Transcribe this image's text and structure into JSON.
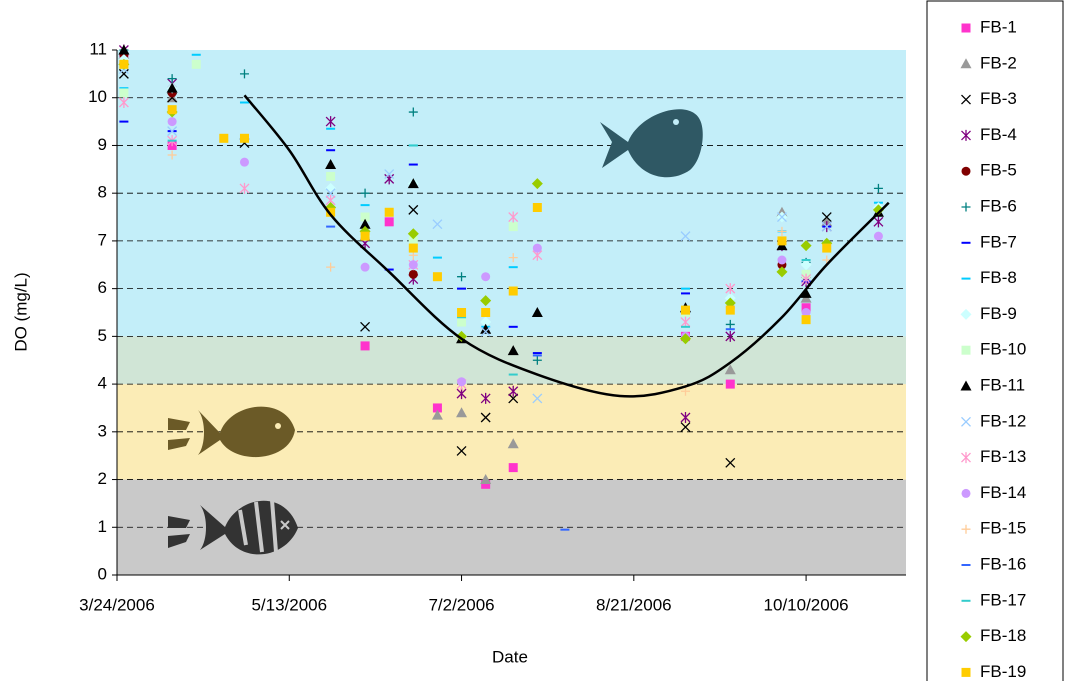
{
  "chart_data": {
    "type": "scatter",
    "x_label": "Date",
    "y_label": "DO (mg/L)",
    "xlim": [
      "3/24/2006",
      "11/8/2006"
    ],
    "xticks": [
      "3/24/2006",
      "5/13/2006",
      "7/2/2006",
      "8/21/2006",
      "10/10/2006"
    ],
    "ylim": [
      0,
      11
    ],
    "yticks": [
      0,
      1,
      2,
      3,
      4,
      5,
      6,
      7,
      8,
      9,
      10,
      11
    ],
    "grid": true,
    "legend": "right",
    "bands": [
      {
        "from": 0,
        "to": 2,
        "color": "#c9c9c9"
      },
      {
        "from": 2,
        "to": 4,
        "color": "#fbecb6"
      },
      {
        "from": 4,
        "to": 5,
        "color": "#d0e5d6"
      },
      {
        "from": 5,
        "to": 11,
        "color": "#c3eef9"
      }
    ],
    "x": [
      "3/26/2006",
      "4/9/2006",
      "4/16/2006",
      "4/24/2006",
      "4/30/2006",
      "5/25/2006",
      "6/4/2006",
      "6/11/2006",
      "6/18/2006",
      "6/25/2006",
      "7/2/2006",
      "7/9/2006",
      "7/17/2006",
      "7/24/2006",
      "8/1/2006",
      "9/5/2006",
      "9/18/2006",
      "10/3/2006",
      "10/10/2006",
      "10/16/2006",
      "10/31/2006"
    ],
    "series": [
      {
        "name": "FB-1",
        "color": "#ff33cc",
        "marker": "square",
        "values": [
          10.8,
          9.0,
          null,
          null,
          null,
          null,
          4.8,
          7.4,
          null,
          3.5,
          null,
          1.9,
          2.25,
          null,
          null,
          5.0,
          4.0,
          null,
          5.6,
          null,
          null
        ]
      },
      {
        "name": "FB-2",
        "color": "#999999",
        "marker": "triangle",
        "values": [
          10.9,
          10.0,
          null,
          null,
          null,
          null,
          null,
          null,
          null,
          3.35,
          3.4,
          2.0,
          2.75,
          null,
          null,
          5.6,
          4.3,
          7.6,
          5.8,
          7.4,
          null
        ]
      },
      {
        "name": "FB-3",
        "color": "#000000",
        "marker": "x",
        "values": [
          10.5,
          10.0,
          null,
          null,
          9.05,
          null,
          5.2,
          null,
          7.65,
          null,
          2.6,
          3.3,
          3.7,
          null,
          null,
          3.1,
          2.35,
          6.9,
          null,
          7.5,
          null
        ]
      },
      {
        "name": "FB-4",
        "color": "#800080",
        "marker": "star",
        "values": [
          11.0,
          10.3,
          null,
          null,
          null,
          9.5,
          6.95,
          8.3,
          6.2,
          null,
          3.8,
          3.7,
          3.85,
          null,
          null,
          3.3,
          5.0,
          6.9,
          6.15,
          7.3,
          7.4
        ]
      },
      {
        "name": "FB-5",
        "color": "#800000",
        "marker": "circle",
        "values": [
          10.9,
          10.1,
          null,
          null,
          null,
          null,
          null,
          null,
          6.3,
          null,
          null,
          null,
          null,
          null,
          null,
          null,
          null,
          6.5,
          null,
          null,
          null
        ]
      },
      {
        "name": "FB-6",
        "color": "#008080",
        "marker": "plus",
        "values": [
          11.0,
          10.4,
          null,
          null,
          10.5,
          null,
          8.0,
          null,
          9.7,
          null,
          6.25,
          null,
          null,
          4.5,
          null,
          5.6,
          5.25,
          null,
          6.55,
          null,
          8.1
        ]
      },
      {
        "name": "FB-7",
        "color": "#0000ff",
        "marker": "dash",
        "values": [
          9.5,
          9.3,
          null,
          null,
          null,
          8.9,
          null,
          6.4,
          8.6,
          null,
          6.0,
          null,
          5.2,
          4.65,
          null,
          5.9,
          null,
          null,
          6.15,
          7.3,
          null
        ]
      },
      {
        "name": "FB-8",
        "color": "#00ccff",
        "marker": "dash",
        "values": [
          10.2,
          null,
          10.9,
          null,
          9.9,
          9.35,
          7.75,
          null,
          9.0,
          6.65,
          null,
          5.2,
          6.45,
          null,
          null,
          6.0,
          null,
          7.2,
          6.3,
          null,
          7.8
        ]
      },
      {
        "name": "FB-9",
        "color": "#ccffff",
        "marker": "diamond",
        "values": [
          10.8,
          10.2,
          null,
          null,
          null,
          8.1,
          7.1,
          null,
          8.2,
          null,
          5.0,
          5.3,
          null,
          null,
          null,
          null,
          5.8,
          7.5,
          6.5,
          null,
          7.7
        ]
      },
      {
        "name": "FB-10",
        "color": "#ccffcc",
        "marker": "square",
        "values": [
          10.1,
          null,
          10.7,
          null,
          null,
          8.35,
          7.5,
          null,
          7.0,
          null,
          5.3,
          null,
          7.3,
          null,
          null,
          5.5,
          null,
          null,
          6.3,
          null,
          null
        ]
      },
      {
        "name": "FB-11",
        "color": "#000000",
        "marker": "triangle",
        "values": [
          11.0,
          10.2,
          null,
          null,
          null,
          8.6,
          7.35,
          null,
          8.2,
          null,
          4.95,
          5.15,
          4.7,
          5.5,
          null,
          5.6,
          null,
          6.9,
          5.9,
          null,
          7.6
        ]
      },
      {
        "name": "FB-12",
        "color": "#99ccff",
        "marker": "x",
        "values": [
          10.6,
          9.3,
          null,
          null,
          null,
          8.0,
          null,
          8.4,
          null,
          7.35,
          null,
          5.1,
          null,
          3.7,
          null,
          7.1,
          null,
          7.5,
          null,
          7.3,
          null
        ]
      },
      {
        "name": "FB-13",
        "color": "#ff99cc",
        "marker": "star",
        "values": [
          9.9,
          9.1,
          null,
          null,
          8.1,
          7.85,
          null,
          null,
          6.5,
          null,
          4.0,
          null,
          7.5,
          6.7,
          null,
          5.3,
          6.0,
          null,
          6.2,
          null,
          null
        ]
      },
      {
        "name": "FB-14",
        "color": "#cc99ff",
        "marker": "circle",
        "values": [
          10.7,
          9.5,
          null,
          null,
          8.65,
          null,
          6.45,
          null,
          6.5,
          null,
          4.05,
          6.25,
          null,
          6.85,
          null,
          5.0,
          5.6,
          6.6,
          5.5,
          null,
          7.1
        ]
      },
      {
        "name": "FB-15",
        "color": "#ffcc99",
        "marker": "plus",
        "values": [
          null,
          8.8,
          null,
          null,
          null,
          6.45,
          null,
          null,
          6.7,
          null,
          null,
          null,
          6.65,
          null,
          null,
          3.85,
          null,
          7.2,
          null,
          6.6,
          null
        ]
      },
      {
        "name": "FB-16",
        "color": "#3366ff",
        "marker": "dash",
        "values": [
          null,
          null,
          null,
          null,
          null,
          7.3,
          null,
          null,
          null,
          null,
          null,
          null,
          null,
          4.6,
          0.95,
          null,
          5.15,
          6.35,
          null,
          null,
          null
        ]
      },
      {
        "name": "FB-17",
        "color": "#33cccc",
        "marker": "dash",
        "values": [
          null,
          9.1,
          null,
          null,
          null,
          null,
          null,
          null,
          9.0,
          null,
          5.4,
          null,
          4.2,
          null,
          null,
          5.2,
          null,
          null,
          6.6,
          null,
          null
        ]
      },
      {
        "name": "FB-18",
        "color": "#99cc00",
        "marker": "diamond",
        "values": [
          10.7,
          9.7,
          null,
          null,
          null,
          7.7,
          7.2,
          null,
          7.15,
          null,
          5.0,
          5.75,
          null,
          8.2,
          null,
          4.95,
          5.7,
          6.35,
          6.9,
          6.95,
          7.65
        ]
      },
      {
        "name": "FB-19",
        "color": "#ffcc00",
        "marker": "square",
        "values": [
          10.7,
          9.75,
          null,
          9.15,
          9.15,
          7.6,
          7.1,
          7.6,
          6.85,
          6.25,
          5.5,
          5.5,
          5.95,
          7.7,
          null,
          5.55,
          5.55,
          7.0,
          5.35,
          6.85,
          null
        ]
      }
    ],
    "trendline": {
      "color": "#000000",
      "x": [
        "4/30/2006",
        "5/13/2006",
        "5/25/2006",
        "6/11/2006",
        "7/2/2006",
        "7/24/2006",
        "8/17/2006",
        "9/5/2006",
        "9/18/2006",
        "10/3/2006",
        "10/16/2006",
        "11/3/2006"
      ],
      "values": [
        10.05,
        8.9,
        7.55,
        6.35,
        4.95,
        4.2,
        3.75,
        3.95,
        4.45,
        5.4,
        6.5,
        7.8
      ]
    }
  }
}
